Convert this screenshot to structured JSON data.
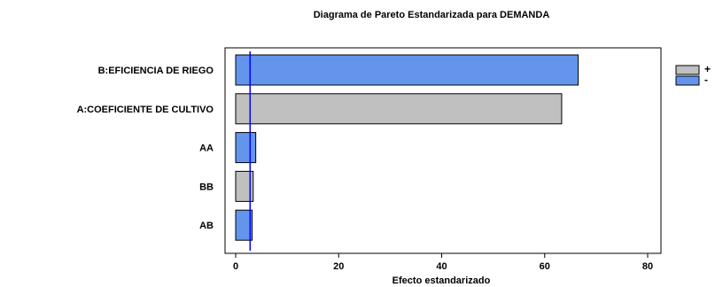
{
  "chart_data": {
    "type": "bar",
    "orientation": "horizontal",
    "title": "Diagrama de Pareto Estandarizada para DEMANDA",
    "xlabel": "Efecto estandarizado",
    "ylabel": "",
    "xlim": [
      0,
      80
    ],
    "xticks": [
      0,
      20,
      40,
      60,
      80
    ],
    "categories": [
      "B:EFICIENCIA DE RIEGO",
      "A:COEFICIENTE DE CULTIVO",
      "AA",
      "BB",
      "AB"
    ],
    "values": [
      66.5,
      63.3,
      3.9,
      3.4,
      3.2
    ],
    "signs": [
      "-",
      "+",
      "-",
      "+",
      "-"
    ],
    "reference_line": 2.8,
    "legend": [
      {
        "label": "+",
        "color": "#c0c0c0"
      },
      {
        "label": "-",
        "color": "#6495ed"
      }
    ],
    "legend_position": "right",
    "colors": {
      "positive": "#c0c0c0",
      "negative": "#6495ed",
      "reference": "#0000ff"
    }
  }
}
